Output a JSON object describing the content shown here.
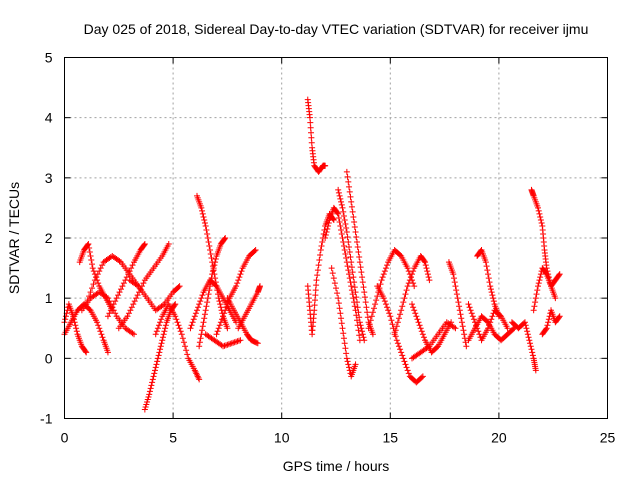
{
  "chart_data": {
    "type": "scatter",
    "title": "Day 025 of 2018, Sidereal Day-to-day VTEC variation (SDTVAR) for receiver ijmu",
    "xlabel": "GPS time / hours",
    "ylabel": "SDTVAR / TECUs",
    "xlim": [
      0,
      25
    ],
    "ylim": [
      -1,
      5
    ],
    "xticks": [
      0,
      5,
      10,
      15,
      20,
      25
    ],
    "yticks": [
      -1,
      0,
      1,
      2,
      3,
      4,
      5
    ],
    "grid": true,
    "marker": "+",
    "color": "#ff0000",
    "series": [
      {
        "name": "ijmu",
        "segments": [
          [
            [
              0.0,
              0.6
            ],
            [
              0.2,
              0.9
            ],
            [
              0.4,
              0.7
            ],
            [
              0.6,
              0.4
            ],
            [
              0.8,
              0.2
            ],
            [
              1.0,
              0.1
            ]
          ],
          [
            [
              0.0,
              0.4
            ],
            [
              0.3,
              0.6
            ],
            [
              0.6,
              0.8
            ],
            [
              0.9,
              0.9
            ],
            [
              1.2,
              0.8
            ],
            [
              1.5,
              0.6
            ],
            [
              1.8,
              0.3
            ],
            [
              2.0,
              0.1
            ]
          ],
          [
            [
              0.7,
              1.6
            ],
            [
              0.9,
              1.8
            ],
            [
              1.1,
              1.9
            ],
            [
              1.3,
              1.5
            ],
            [
              1.6,
              1.2
            ],
            [
              1.9,
              1.0
            ],
            [
              2.2,
              0.8
            ]
          ],
          [
            [
              1.0,
              0.9
            ],
            [
              1.4,
              1.3
            ],
            [
              1.8,
              1.6
            ],
            [
              2.2,
              1.7
            ],
            [
              2.6,
              1.6
            ],
            [
              3.0,
              1.4
            ],
            [
              3.4,
              1.2
            ]
          ],
          [
            [
              0.8,
              0.8
            ],
            [
              1.2,
              1.0
            ],
            [
              1.6,
              1.1
            ],
            [
              2.0,
              1.0
            ],
            [
              2.4,
              0.7
            ],
            [
              2.8,
              0.5
            ],
            [
              3.2,
              0.4
            ]
          ],
          [
            [
              2.0,
              0.7
            ],
            [
              2.4,
              1.0
            ],
            [
              2.8,
              1.3
            ],
            [
              3.2,
              1.6
            ],
            [
              3.5,
              1.8
            ],
            [
              3.7,
              1.9
            ]
          ],
          [
            [
              2.5,
              0.5
            ],
            [
              2.9,
              0.7
            ],
            [
              3.3,
              1.0
            ],
            [
              3.7,
              1.3
            ],
            [
              4.1,
              1.5
            ],
            [
              4.5,
              1.7
            ],
            [
              4.8,
              1.9
            ]
          ],
          [
            [
              3.0,
              1.3
            ],
            [
              3.4,
              1.2
            ],
            [
              3.8,
              1.0
            ],
            [
              4.2,
              0.8
            ],
            [
              4.6,
              0.9
            ],
            [
              5.0,
              1.1
            ],
            [
              5.3,
              1.2
            ]
          ],
          [
            [
              3.7,
              -0.85
            ],
            [
              3.9,
              -0.6
            ],
            [
              4.1,
              -0.3
            ],
            [
              4.3,
              0.0
            ],
            [
              4.5,
              0.3
            ],
            [
              4.7,
              0.6
            ],
            [
              4.9,
              0.8
            ],
            [
              5.1,
              0.9
            ]
          ],
          [
            [
              4.2,
              0.4
            ],
            [
              4.5,
              0.7
            ],
            [
              4.8,
              0.9
            ],
            [
              5.1,
              0.7
            ],
            [
              5.4,
              0.4
            ],
            [
              5.7,
              0.0
            ],
            [
              6.0,
              -0.2
            ],
            [
              6.2,
              -0.35
            ]
          ],
          [
            [
              6.1,
              2.7
            ],
            [
              6.3,
              2.5
            ],
            [
              6.5,
              2.2
            ],
            [
              6.7,
              1.8
            ],
            [
              6.9,
              1.4
            ],
            [
              7.1,
              1.0
            ],
            [
              7.3,
              0.7
            ],
            [
              7.5,
              0.5
            ]
          ],
          [
            [
              6.2,
              0.2
            ],
            [
              6.4,
              0.6
            ],
            [
              6.6,
              1.0
            ],
            [
              6.8,
              1.4
            ],
            [
              7.0,
              1.7
            ],
            [
              7.2,
              1.9
            ],
            [
              7.4,
              2.0
            ]
          ],
          [
            [
              5.8,
              0.5
            ],
            [
              6.1,
              0.8
            ],
            [
              6.4,
              1.1
            ],
            [
              6.7,
              1.3
            ],
            [
              7.0,
              1.2
            ],
            [
              7.3,
              1.0
            ],
            [
              7.6,
              0.8
            ],
            [
              7.9,
              0.6
            ]
          ],
          [
            [
              7.0,
              0.4
            ],
            [
              7.3,
              0.7
            ],
            [
              7.6,
              1.0
            ],
            [
              7.9,
              1.2
            ],
            [
              8.2,
              1.5
            ],
            [
              8.5,
              1.7
            ],
            [
              8.8,
              1.8
            ]
          ],
          [
            [
              7.5,
              1.0
            ],
            [
              7.8,
              0.8
            ],
            [
              8.1,
              0.6
            ],
            [
              8.4,
              0.4
            ],
            [
              8.6,
              0.3
            ],
            [
              8.9,
              0.25
            ]
          ],
          [
            [
              8.0,
              0.5
            ],
            [
              8.3,
              0.7
            ],
            [
              8.6,
              0.9
            ],
            [
              8.9,
              1.1
            ],
            [
              9.0,
              1.2
            ]
          ],
          [
            [
              6.5,
              0.4
            ],
            [
              6.9,
              0.3
            ],
            [
              7.3,
              0.2
            ],
            [
              7.7,
              0.25
            ],
            [
              8.1,
              0.3
            ]
          ],
          [
            [
              11.2,
              4.3
            ],
            [
              11.3,
              4.0
            ],
            [
              11.4,
              3.5
            ],
            [
              11.5,
              3.2
            ],
            [
              11.7,
              3.1
            ],
            [
              11.9,
              3.2
            ],
            [
              12.0,
              3.2
            ]
          ],
          [
            [
              11.2,
              1.2
            ],
            [
              11.3,
              0.8
            ],
            [
              11.4,
              0.4
            ],
            [
              11.5,
              0.8
            ],
            [
              11.6,
              1.3
            ],
            [
              11.8,
              1.8
            ],
            [
              12.0,
              2.2
            ],
            [
              12.2,
              2.4
            ],
            [
              12.4,
              2.3
            ]
          ],
          [
            [
              12.0,
              2.0
            ],
            [
              12.2,
              2.3
            ],
            [
              12.4,
              2.5
            ],
            [
              12.6,
              2.4
            ],
            [
              12.8,
              2.0
            ],
            [
              13.0,
              1.6
            ],
            [
              13.2,
              1.2
            ],
            [
              13.4,
              0.8
            ],
            [
              13.6,
              0.3
            ]
          ],
          [
            [
              12.6,
              2.8
            ],
            [
              12.8,
              2.5
            ],
            [
              13.0,
              2.1
            ],
            [
              13.2,
              1.6
            ],
            [
              13.4,
              1.1
            ],
            [
              13.6,
              0.6
            ],
            [
              13.8,
              0.3
            ]
          ],
          [
            [
              13.0,
              3.1
            ],
            [
              13.2,
              2.6
            ],
            [
              13.4,
              2.1
            ],
            [
              13.6,
              1.6
            ],
            [
              13.8,
              1.1
            ],
            [
              14.0,
              0.6
            ],
            [
              14.2,
              0.4
            ]
          ],
          [
            [
              12.3,
              1.5
            ],
            [
              12.6,
              1.0
            ],
            [
              12.8,
              0.5
            ],
            [
              13.0,
              0.0
            ],
            [
              13.2,
              -0.3
            ],
            [
              13.4,
              -0.1
            ]
          ],
          [
            [
              14.0,
              0.5
            ],
            [
              14.3,
              0.9
            ],
            [
              14.6,
              1.3
            ],
            [
              14.9,
              1.6
            ],
            [
              15.2,
              1.8
            ],
            [
              15.5,
              1.7
            ],
            [
              15.8,
              1.5
            ],
            [
              16.1,
              1.2
            ]
          ],
          [
            [
              14.4,
              1.2
            ],
            [
              14.7,
              1.0
            ],
            [
              15.0,
              0.7
            ],
            [
              15.3,
              0.3
            ],
            [
              15.6,
              0.0
            ],
            [
              15.9,
              -0.3
            ],
            [
              16.2,
              -0.4
            ],
            [
              16.5,
              -0.3
            ]
          ],
          [
            [
              15.2,
              0.4
            ],
            [
              15.5,
              0.8
            ],
            [
              15.8,
              1.2
            ],
            [
              16.1,
              1.5
            ],
            [
              16.4,
              1.7
            ],
            [
              16.6,
              1.6
            ],
            [
              16.8,
              1.3
            ]
          ],
          [
            [
              16.0,
              0.9
            ],
            [
              16.3,
              0.6
            ],
            [
              16.6,
              0.3
            ],
            [
              16.9,
              0.1
            ],
            [
              17.2,
              0.2
            ],
            [
              17.5,
              0.4
            ],
            [
              17.8,
              0.6
            ]
          ],
          [
            [
              16.0,
              0.0
            ],
            [
              16.4,
              0.1
            ],
            [
              16.8,
              0.2
            ],
            [
              17.2,
              0.4
            ],
            [
              17.6,
              0.6
            ],
            [
              18.0,
              0.5
            ]
          ],
          [
            [
              17.7,
              1.6
            ],
            [
              17.9,
              1.4
            ],
            [
              18.1,
              1.0
            ],
            [
              18.3,
              0.6
            ],
            [
              18.5,
              0.2
            ]
          ],
          [
            [
              18.6,
              0.9
            ],
            [
              18.9,
              0.6
            ],
            [
              19.2,
              0.3
            ],
            [
              19.5,
              0.5
            ],
            [
              19.8,
              0.8
            ],
            [
              20.1,
              0.7
            ],
            [
              20.4,
              0.5
            ]
          ],
          [
            [
              18.6,
              0.3
            ],
            [
              18.9,
              0.5
            ],
            [
              19.2,
              0.7
            ],
            [
              19.5,
              0.6
            ],
            [
              19.8,
              0.4
            ],
            [
              20.1,
              0.3
            ],
            [
              20.4,
              0.4
            ],
            [
              20.7,
              0.5
            ]
          ],
          [
            [
              19.0,
              1.7
            ],
            [
              19.2,
              1.8
            ],
            [
              19.4,
              1.6
            ],
            [
              19.6,
              1.2
            ],
            [
              19.8,
              0.9
            ],
            [
              20.0,
              0.7
            ]
          ],
          [
            [
              20.6,
              0.6
            ],
            [
              20.9,
              0.5
            ],
            [
              21.2,
              0.6
            ],
            [
              21.4,
              0.3
            ],
            [
              21.6,
              0.0
            ],
            [
              21.7,
              -0.2
            ]
          ],
          [
            [
              21.5,
              2.8
            ],
            [
              21.6,
              2.7
            ],
            [
              21.8,
              2.5
            ],
            [
              22.0,
              2.2
            ],
            [
              22.1,
              1.8
            ],
            [
              22.2,
              1.5
            ],
            [
              22.4,
              1.2
            ],
            [
              22.6,
              1.0
            ]
          ],
          [
            [
              21.6,
              0.8
            ],
            [
              21.8,
              1.2
            ],
            [
              22.0,
              1.5
            ],
            [
              22.2,
              1.4
            ],
            [
              22.4,
              1.2
            ],
            [
              22.6,
              1.3
            ],
            [
              22.8,
              1.4
            ]
          ],
          [
            [
              22.0,
              0.4
            ],
            [
              22.2,
              0.5
            ],
            [
              22.4,
              0.8
            ],
            [
              22.6,
              0.6
            ],
            [
              22.8,
              0.7
            ]
          ]
        ]
      }
    ]
  }
}
